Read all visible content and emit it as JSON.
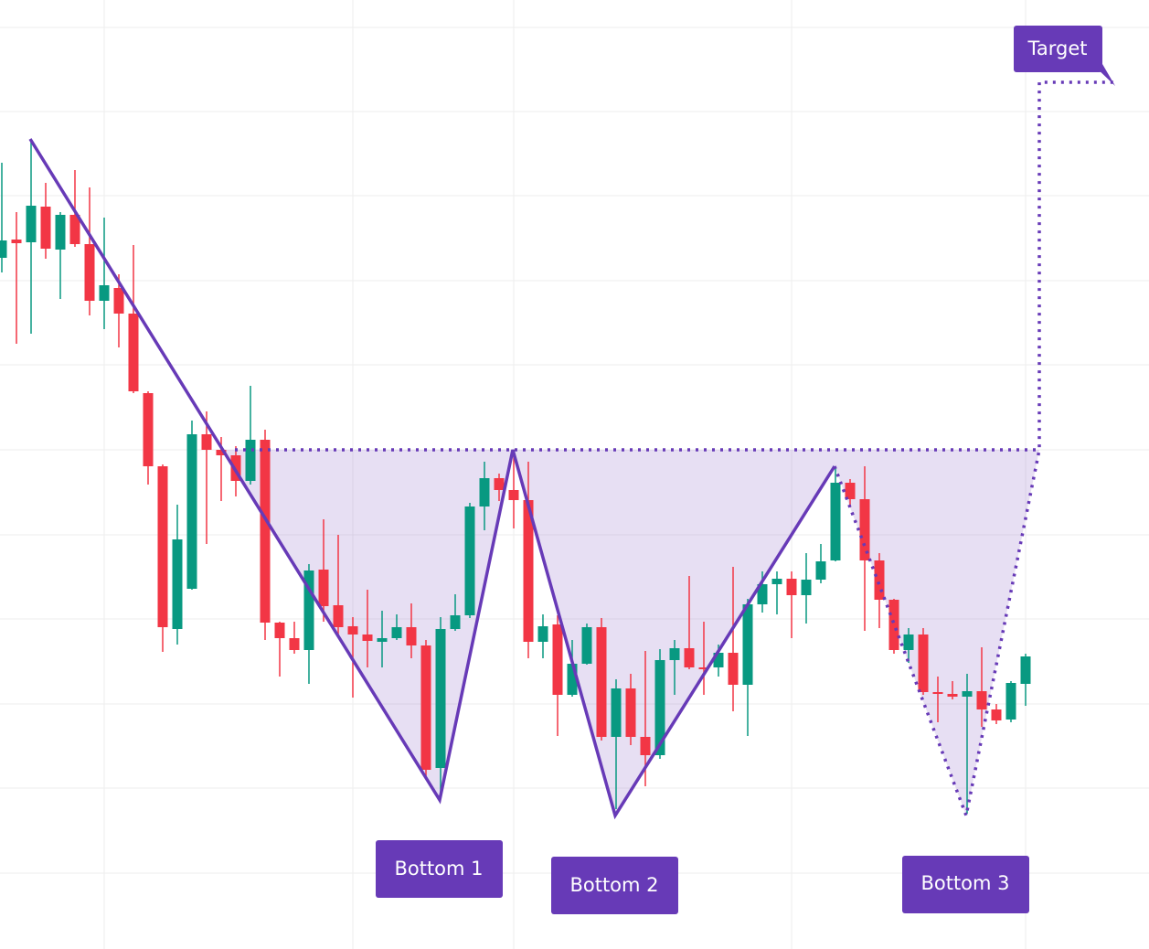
{
  "chart_data": {
    "type": "candlestick",
    "categories": [
      null,
      null,
      null,
      null,
      null,
      null,
      null,
      null,
      null,
      null,
      null,
      null,
      null,
      null,
      null,
      null,
      null,
      null,
      null,
      null,
      null,
      null,
      null,
      null,
      null,
      null,
      null,
      null,
      null,
      null,
      null,
      null,
      null,
      null,
      null,
      null,
      null,
      null,
      null,
      null,
      null,
      null,
      null,
      null,
      null,
      null,
      null,
      null,
      null,
      null,
      null,
      null,
      null,
      null,
      null,
      null,
      null,
      null,
      null,
      null,
      null,
      null,
      null,
      null,
      null,
      null,
      null,
      null,
      null,
      null,
      null
    ],
    "open": [
      756,
      776,
      773,
      812,
      765,
      803,
      771,
      709,
      723,
      695,
      608,
      528,
      350,
      394,
      563,
      546,
      540,
      512,
      557,
      357,
      340,
      327,
      415,
      376,
      353,
      344,
      336,
      340,
      352,
      332,
      198,
      350,
      365,
      484,
      515,
      502,
      491,
      336,
      355,
      278,
      312,
      352,
      232,
      285,
      232,
      212,
      316,
      329,
      308,
      308,
      324,
      289,
      377,
      399,
      405,
      387,
      404,
      425,
      510,
      492,
      425,
      382,
      327,
      344,
      281,
      279,
      276,
      282,
      262,
      251,
      290
    ],
    "high": [
      860,
      806,
      886,
      838,
      806,
      852,
      833,
      800,
      738,
      770,
      610,
      530,
      486,
      578,
      588,
      560,
      550,
      616,
      568,
      358,
      358,
      421,
      470,
      453,
      363,
      393,
      370,
      366,
      378,
      338,
      363,
      388,
      488,
      533,
      520,
      546,
      533,
      366,
      365,
      338,
      356,
      362,
      295,
      301,
      326,
      328,
      338,
      408,
      358,
      333,
      418,
      383,
      413,
      413,
      413,
      433,
      443,
      528,
      514,
      528,
      433,
      383,
      351,
      351,
      298,
      293,
      301,
      330,
      268,
      293,
      323
    ],
    "low": [
      740,
      662,
      673,
      755,
      711,
      768,
      693,
      678,
      658,
      608,
      508,
      325,
      333,
      393,
      443,
      490,
      495,
      508,
      338,
      298,
      323,
      290,
      358,
      343,
      275,
      308,
      308,
      338,
      318,
      188,
      168,
      348,
      362,
      458,
      490,
      460,
      318,
      318,
      233,
      276,
      311,
      228,
      153,
      223,
      178,
      208,
      278,
      306,
      278,
      298,
      260,
      233,
      368,
      366,
      340,
      356,
      400,
      424,
      483,
      348,
      351,
      323,
      313,
      278,
      248,
      273,
      148,
      243,
      246,
      248,
      266
    ],
    "close": [
      775,
      772,
      813,
      766,
      803,
      771,
      709,
      726,
      695,
      610,
      528,
      352,
      448,
      563,
      546,
      540,
      512,
      557,
      357,
      340,
      327,
      414,
      375,
      352,
      344,
      337,
      340,
      352,
      332,
      196,
      350,
      365,
      484,
      515,
      502,
      491,
      336,
      353,
      278,
      312,
      352,
      232,
      285,
      232,
      212,
      316,
      329,
      308,
      307,
      324,
      289,
      377,
      399,
      405,
      387,
      404,
      424,
      510,
      492,
      425,
      382,
      327,
      344,
      281,
      279,
      276,
      282,
      262,
      250,
      291,
      320
    ],
    "up_color": "#089981",
    "down_color": "#f23645",
    "ylim": [
      0,
      1038
    ],
    "yticks": [
      83,
      176,
      268,
      361,
      453,
      546,
      639,
      731,
      824,
      916,
      1008
    ],
    "xgrid": [
      7,
      24,
      35,
      54,
      70
    ],
    "grid": true,
    "annotations": [
      "Bottom 1",
      "Bottom 2",
      "Bottom 3",
      "Target"
    ]
  }
}
